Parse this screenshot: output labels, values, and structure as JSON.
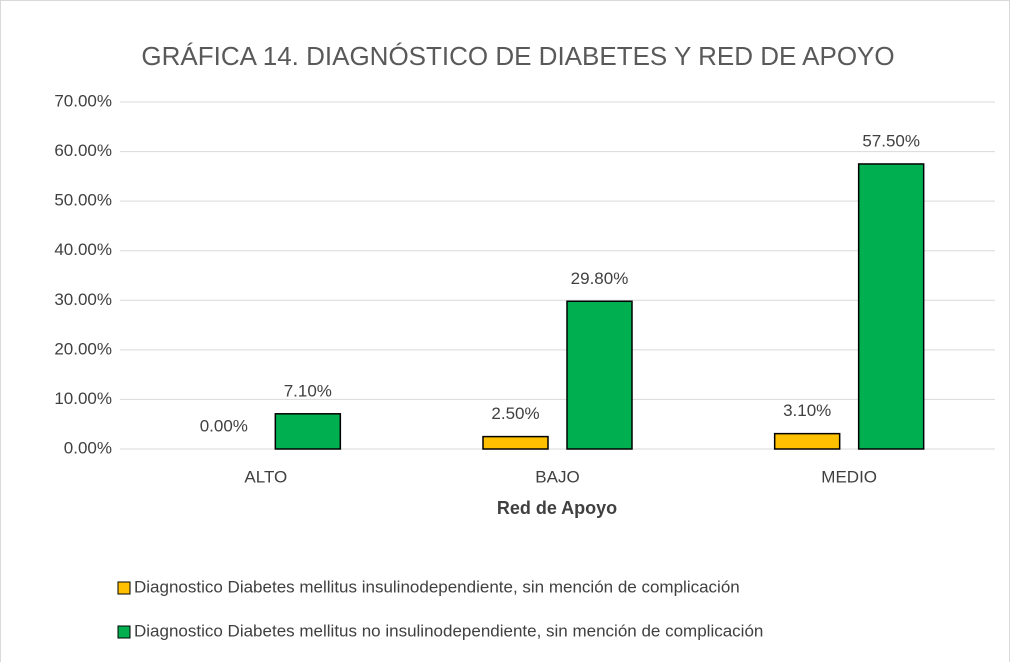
{
  "chart_data": {
    "type": "bar",
    "title": "GRÁFICA 14. DIAGNÓSTICO DE DIABETES Y RED DE APOYO",
    "x_label": "Red de Apoyo",
    "categories": [
      "ALTO",
      "BAJO",
      "MEDIO"
    ],
    "series": [
      {
        "name": "Diagnostico Diabetes mellitus insulinodependiente, sin mención de complicación",
        "color": "#ffc000",
        "values": [
          0,
          2.5,
          3.1
        ],
        "value_labels": [
          "0.00%",
          "2.50%",
          "3.10%"
        ]
      },
      {
        "name": "Diagnostico Diabetes mellitus no insulinodependiente, sin mención de complicación",
        "color": "#00b050",
        "values": [
          7.1,
          29.8,
          57.5
        ],
        "value_labels": [
          "7.10%",
          "29.80%",
          "57.50%"
        ]
      }
    ],
    "ylim": [
      0,
      70
    ],
    "yticks": [
      {
        "value": 0,
        "label": "0.00%"
      },
      {
        "value": 10,
        "label": "10.00%"
      },
      {
        "value": 20,
        "label": "20.00%"
      },
      {
        "value": 30,
        "label": "30.00%"
      },
      {
        "value": 40,
        "label": "40.00%"
      },
      {
        "value": 50,
        "label": "50.00%"
      },
      {
        "value": 60,
        "label": "60.00%"
      },
      {
        "value": 70,
        "label": "70.00%"
      }
    ],
    "grid": true,
    "legend": "bottom"
  }
}
